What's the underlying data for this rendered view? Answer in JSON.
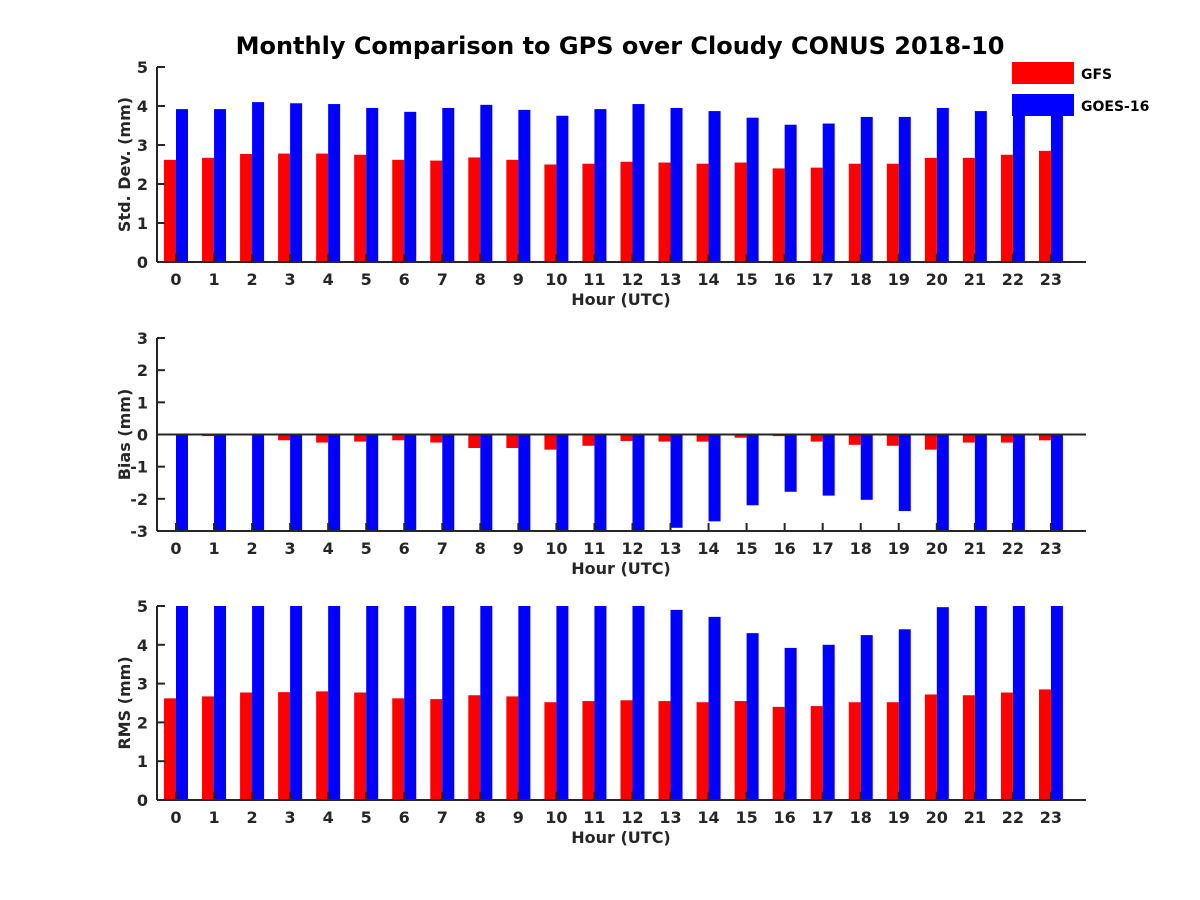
{
  "title": "Monthly Comparison to GPS over Cloudy CONUS 2018-10",
  "colors": {
    "gfs": "#ff0000",
    "goes": "#0000ff",
    "axis": "#262626"
  },
  "legend": {
    "items": [
      "GFS",
      "GOES-16"
    ],
    "placement": "top-right"
  },
  "chart_data": [
    {
      "type": "bar",
      "xlabel": "Hour (UTC)",
      "ylabel": "Std. Dev. (mm)",
      "ylim": [
        0,
        5
      ],
      "yticks": [
        "0",
        "1",
        "2",
        "3",
        "4",
        "5"
      ],
      "categories": [
        "0",
        "1",
        "2",
        "3",
        "4",
        "5",
        "6",
        "7",
        "8",
        "9",
        "10",
        "11",
        "12",
        "13",
        "14",
        "15",
        "16",
        "17",
        "18",
        "19",
        "20",
        "21",
        "22",
        "23"
      ],
      "series": [
        {
          "name": "GFS",
          "values": [
            2.62,
            2.67,
            2.77,
            2.78,
            2.78,
            2.75,
            2.62,
            2.6,
            2.68,
            2.62,
            2.5,
            2.52,
            2.57,
            2.55,
            2.52,
            2.55,
            2.4,
            2.42,
            2.52,
            2.52,
            2.67,
            2.67,
            2.75,
            2.85
          ]
        },
        {
          "name": "GOES-16",
          "values": [
            3.92,
            3.92,
            4.1,
            4.07,
            4.05,
            3.95,
            3.85,
            3.95,
            4.03,
            3.9,
            3.75,
            3.92,
            4.05,
            3.95,
            3.87,
            3.7,
            3.52,
            3.55,
            3.72,
            3.72,
            3.95,
            3.87,
            4.0,
            4.05
          ]
        }
      ]
    },
    {
      "type": "bar",
      "xlabel": "Hour (UTC)",
      "ylabel": "Bias (mm)",
      "ylim": [
        -3,
        3
      ],
      "yticks": [
        "-3",
        "-2",
        "-1",
        "0",
        "1",
        "2",
        "3"
      ],
      "categories": [
        "0",
        "1",
        "2",
        "3",
        "4",
        "5",
        "6",
        "7",
        "8",
        "9",
        "10",
        "11",
        "12",
        "13",
        "14",
        "15",
        "16",
        "17",
        "18",
        "19",
        "20",
        "21",
        "22",
        "23"
      ],
      "series": [
        {
          "name": "GFS",
          "values": [
            0.0,
            -0.05,
            0.0,
            -0.18,
            -0.25,
            -0.22,
            -0.18,
            -0.25,
            -0.42,
            -0.42,
            -0.47,
            -0.35,
            -0.2,
            -0.22,
            -0.22,
            -0.1,
            -0.05,
            -0.22,
            -0.32,
            -0.35,
            -0.47,
            -0.25,
            -0.25,
            -0.18
          ]
        },
        {
          "name": "GOES-16",
          "values": [
            -3.0,
            -3.0,
            -3.0,
            -3.0,
            -3.0,
            -3.0,
            -3.0,
            -3.0,
            -3.0,
            -3.0,
            -3.0,
            -3.0,
            -3.0,
            -2.9,
            -2.7,
            -2.2,
            -1.78,
            -1.9,
            -2.03,
            -2.38,
            -3.0,
            -3.0,
            -3.0,
            -3.0
          ]
        }
      ]
    },
    {
      "type": "bar",
      "xlabel": "Hour (UTC)",
      "ylabel": "RMS (mm)",
      "ylim": [
        0,
        5
      ],
      "yticks": [
        "0",
        "1",
        "2",
        "3",
        "4",
        "5"
      ],
      "categories": [
        "0",
        "1",
        "2",
        "3",
        "4",
        "5",
        "6",
        "7",
        "8",
        "9",
        "10",
        "11",
        "12",
        "13",
        "14",
        "15",
        "16",
        "17",
        "18",
        "19",
        "20",
        "21",
        "22",
        "23"
      ],
      "series": [
        {
          "name": "GFS",
          "values": [
            2.62,
            2.67,
            2.77,
            2.78,
            2.8,
            2.77,
            2.62,
            2.6,
            2.7,
            2.67,
            2.52,
            2.55,
            2.57,
            2.55,
            2.52,
            2.55,
            2.4,
            2.42,
            2.52,
            2.52,
            2.72,
            2.7,
            2.77,
            2.85
          ]
        },
        {
          "name": "GOES-16",
          "values": [
            5.0,
            5.0,
            5.0,
            5.0,
            5.0,
            5.0,
            5.0,
            5.0,
            5.0,
            5.0,
            5.0,
            5.0,
            5.0,
            4.9,
            4.72,
            4.3,
            3.92,
            4.0,
            4.25,
            4.4,
            4.97,
            5.0,
            5.0,
            5.0
          ]
        }
      ]
    }
  ]
}
